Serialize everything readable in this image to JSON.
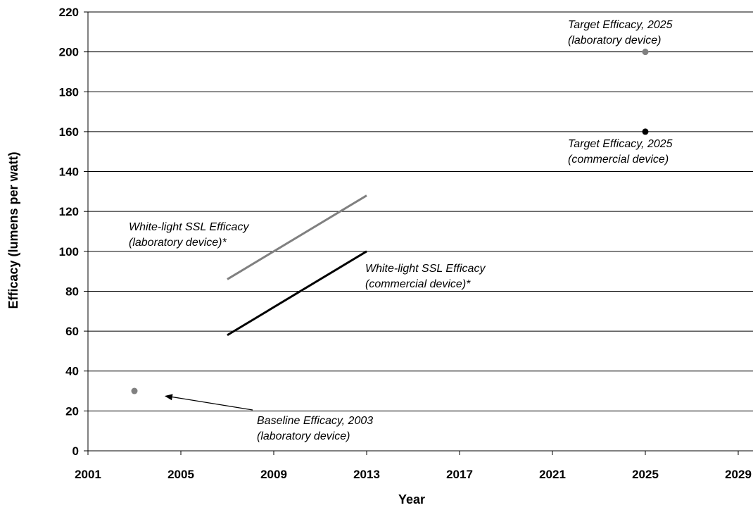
{
  "chart_data": {
    "type": "line",
    "xlabel": "Year",
    "ylabel": "Efficacy (lumens per watt)",
    "xlim": [
      2001,
      2029
    ],
    "ylim": [
      0,
      220
    ],
    "x_ticks": [
      2001,
      2005,
      2009,
      2013,
      2017,
      2021,
      2025,
      2029
    ],
    "y_ticks": [
      0,
      20,
      40,
      60,
      80,
      100,
      120,
      140,
      160,
      180,
      200,
      220
    ],
    "grid": "horizontal",
    "series": [
      {
        "points": [
          [
            2007,
            86
          ],
          [
            2013,
            128
          ]
        ],
        "color": "#808080",
        "mark": "line"
      },
      {
        "points": [
          [
            2007,
            58
          ],
          [
            2013,
            100
          ]
        ],
        "color": "#000000",
        "mark": "line"
      },
      {
        "points": [
          [
            2003,
            30
          ]
        ],
        "color": "#808080",
        "mark": "point"
      },
      {
        "points": [
          [
            2025,
            200
          ]
        ],
        "color": "#808080",
        "mark": "point"
      },
      {
        "points": [
          [
            2025,
            160
          ]
        ],
        "color": "#000000",
        "mark": "point"
      }
    ],
    "annotations": [
      {
        "lines": [
          "Target Efficacy, 2025",
          "(laboratory device)"
        ]
      },
      {
        "lines": [
          "Target Efficacy, 2025",
          "(commercial device)"
        ]
      },
      {
        "lines": [
          "White-light SSL Efficacy",
          "(laboratory device)*"
        ]
      },
      {
        "lines": [
          "White-light SSL Efficacy",
          "(commercial device)*"
        ]
      },
      {
        "lines": [
          "Baseline Efficacy, 2003",
          "(laboratory device)"
        ],
        "arrow_to": [
          2004.3,
          27.5
        ]
      }
    ]
  }
}
